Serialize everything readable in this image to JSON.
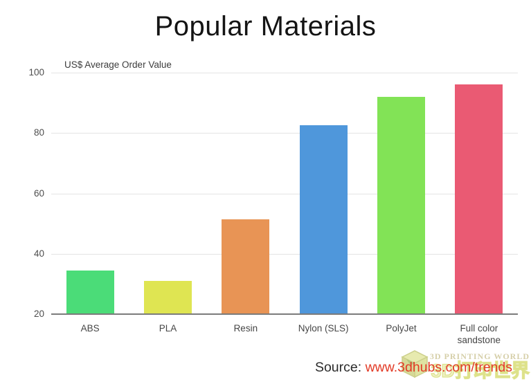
{
  "title": "Popular Materials",
  "chart_data": {
    "type": "bar",
    "title": "Popular Materials",
    "xlabel": "",
    "ylabel": "US$ Average Order Value",
    "categories": [
      "ABS",
      "PLA",
      "Resin",
      "Nylon (SLS)",
      "PolyJet",
      "Full color sandstone"
    ],
    "values": [
      34.5,
      31,
      51.5,
      82.5,
      92,
      96
    ],
    "bar_colors": [
      "#4bdc78",
      "#dfe552",
      "#e89455",
      "#4f97db",
      "#82e356",
      "#ea5a73"
    ],
    "ylim": [
      20,
      100
    ],
    "yticks": [
      20,
      40,
      60,
      80,
      100
    ],
    "grid": true,
    "legend": false,
    "gridline_color": "#e4e4e4",
    "axis_line_color": "#7b7b7b"
  },
  "source": {
    "label": "Source: ",
    "link": "www.3dhubs.com/trends",
    "link_color": "#e23a26"
  },
  "watermark": {
    "line1": "3D PRINTING WORLD",
    "line2": "3D打印世界",
    "icon": "cube-3d-icon",
    "accent_color": "#d2d864"
  }
}
